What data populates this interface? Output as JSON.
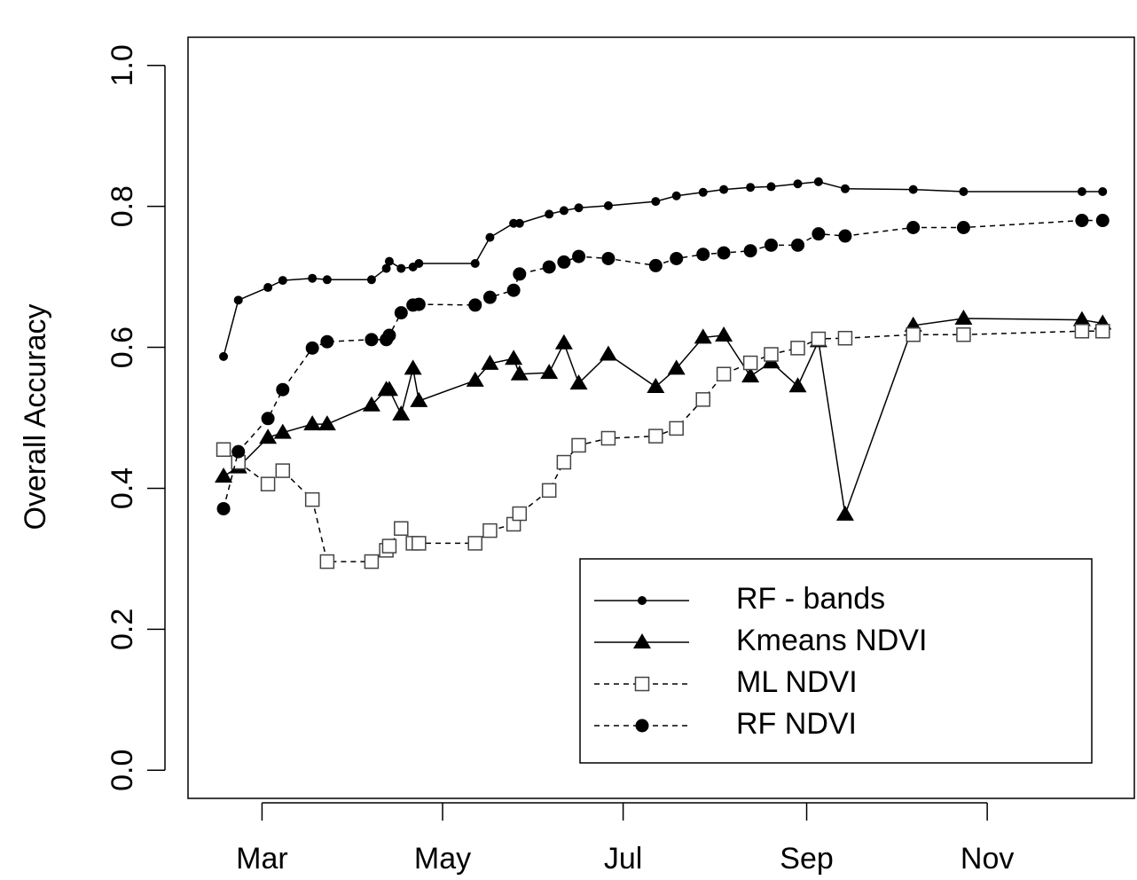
{
  "chart_data": {
    "type": "line",
    "y_label": "Overall Accuracy",
    "x": [
      47,
      52,
      62,
      67,
      77,
      82,
      97,
      102,
      103,
      107,
      111,
      113,
      132,
      137,
      145,
      147,
      157,
      162,
      167,
      177,
      193,
      200,
      209,
      216,
      225,
      232,
      241,
      248,
      257,
      280,
      297,
      337,
      344
    ],
    "series": [
      {
        "name": "RF - bands",
        "color": "#000000",
        "marker": "dot",
        "dashed": false,
        "values": [
          0.587,
          0.667,
          0.685,
          0.695,
          0.698,
          0.696,
          0.696,
          0.712,
          0.722,
          0.712,
          0.714,
          0.719,
          0.719,
          0.756,
          0.776,
          0.776,
          0.789,
          0.794,
          0.798,
          0.801,
          0.807,
          0.815,
          0.82,
          0.824,
          0.827,
          0.828,
          0.832,
          0.835,
          0.825,
          0.824,
          0.821,
          0.821,
          0.821
        ]
      },
      {
        "name": "Kmeans NDVI",
        "color": "#000000",
        "marker": "triangle",
        "dashed": false,
        "values": [
          0.417,
          0.43,
          0.472,
          0.479,
          0.491,
          0.491,
          0.518,
          0.54,
          0.54,
          0.505,
          0.57,
          0.524,
          0.553,
          0.577,
          0.584,
          0.562,
          0.564,
          0.606,
          0.549,
          0.59,
          0.544,
          0.57,
          0.614,
          0.617,
          0.559,
          0.579,
          0.545,
          0.609,
          0.363,
          0.631,
          0.641,
          0.639,
          0.634
        ]
      },
      {
        "name": "ML NDVI",
        "color": "#000000",
        "marker": "open-square",
        "dashed": true,
        "values": [
          0.455,
          0.437,
          0.406,
          0.425,
          0.384,
          0.296,
          0.296,
          0.312,
          0.318,
          0.343,
          0.322,
          0.322,
          0.322,
          0.34,
          0.349,
          0.364,
          0.397,
          0.437,
          0.461,
          0.471,
          0.474,
          0.485,
          0.526,
          0.562,
          0.578,
          0.59,
          0.599,
          0.612,
          0.613,
          0.618,
          0.618,
          0.623,
          0.623
        ]
      },
      {
        "name": "RF NDVI",
        "color": "#000000",
        "marker": "circle",
        "dashed": true,
        "values": [
          0.371,
          0.452,
          0.499,
          0.54,
          0.599,
          0.608,
          0.611,
          0.611,
          0.617,
          0.649,
          0.66,
          0.661,
          0.66,
          0.671,
          0.681,
          0.704,
          0.714,
          0.721,
          0.729,
          0.726,
          0.716,
          0.726,
          0.732,
          0.734,
          0.737,
          0.745,
          0.745,
          0.761,
          0.758,
          0.77,
          0.77,
          0.78,
          0.78
        ]
      }
    ],
    "xlim": [
      35,
      355
    ],
    "xticks": [
      {
        "value": 60,
        "label": "Mar"
      },
      {
        "value": 121,
        "label": "May"
      },
      {
        "value": 182,
        "label": "Jul"
      },
      {
        "value": 244,
        "label": "Sep"
      },
      {
        "value": 305,
        "label": "Nov"
      }
    ],
    "ylim": [
      -0.04,
      1.04
    ],
    "yticks": [
      {
        "value": 0,
        "label": "0.0"
      },
      {
        "value": 0.2,
        "label": "0.2"
      },
      {
        "value": 0.4,
        "label": "0.4"
      },
      {
        "value": 0.6,
        "label": "0.6"
      },
      {
        "value": 0.8,
        "label": "0.8"
      },
      {
        "value": 1,
        "label": "1.0"
      }
    ],
    "grid": false,
    "legend": "bottom-right"
  }
}
